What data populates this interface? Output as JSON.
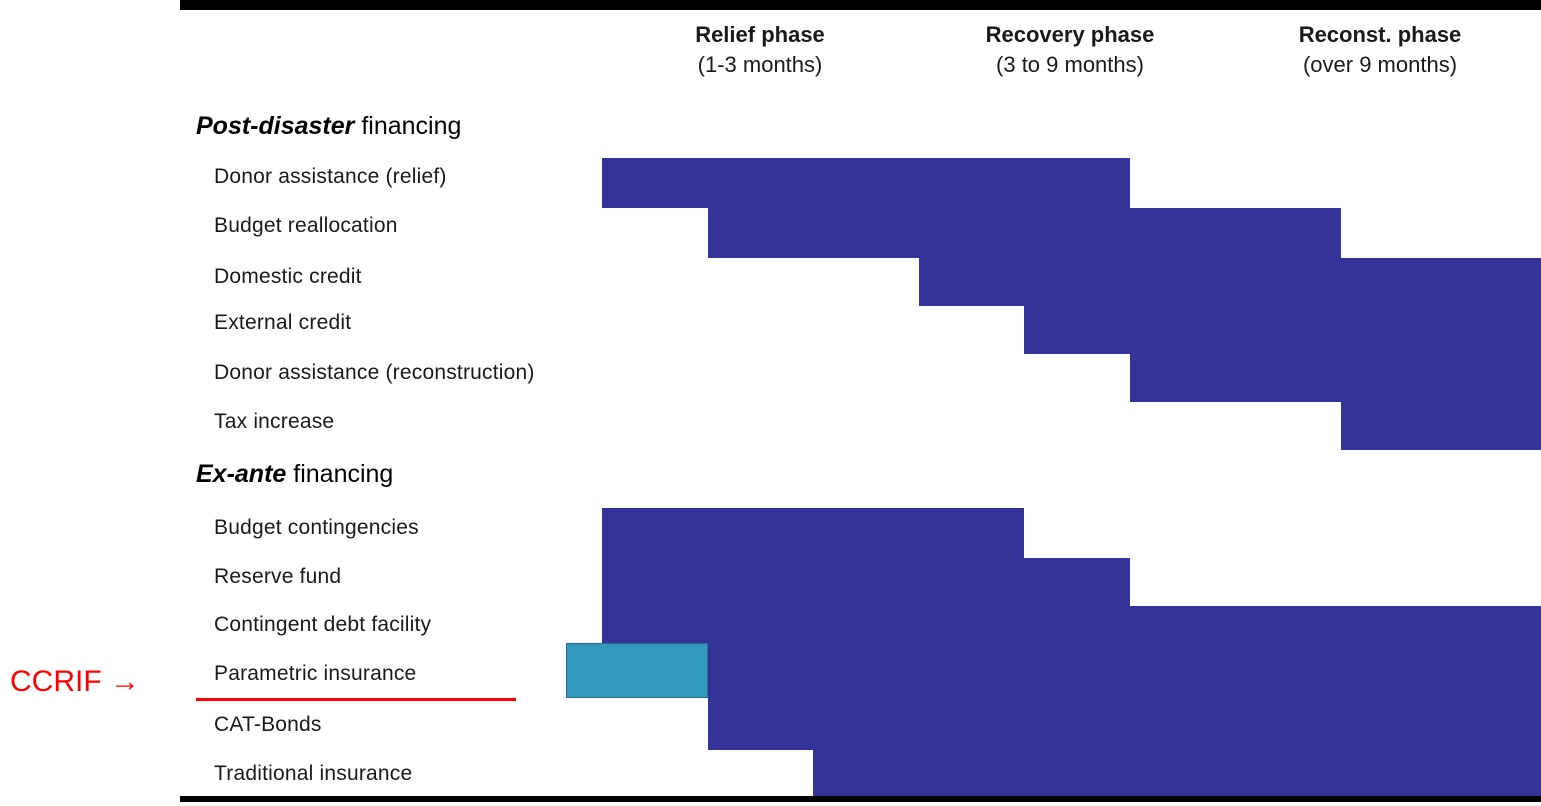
{
  "phases": [
    {
      "name": "Relief phase",
      "range": "(1-3 months)"
    },
    {
      "name": "Recovery phase",
      "range": "(3 to 9 months)"
    },
    {
      "name": "Reconst. phase",
      "range": "(over 9 months)"
    }
  ],
  "sections": {
    "post_disaster": {
      "italic": "Post-disaster",
      "rest": " financing"
    },
    "ex_ante": {
      "italic": "Ex-ante",
      "rest": " financing"
    }
  },
  "rows": [
    {
      "label": "Donor assistance (relief)",
      "start_month": 0,
      "end_month": 5
    },
    {
      "label": "Budget reallocation",
      "start_month": 1,
      "end_month": 7
    },
    {
      "label": "Domestic credit",
      "start_month": 3,
      "end_month": 9
    },
    {
      "label": "External credit",
      "start_month": 4,
      "end_month": 9
    },
    {
      "label": "Donor assistance (reconstruction)",
      "start_month": 5,
      "end_month": 9
    },
    {
      "label": "Tax increase",
      "start_month": 7,
      "end_month": 9
    },
    {
      "label": "Budget contingencies",
      "start_month": 0,
      "end_month": 4
    },
    {
      "label": "Reserve fund",
      "start_month": 0,
      "end_month": 5
    },
    {
      "label": "Contingent debt facility",
      "start_month": 0,
      "end_month": 9
    },
    {
      "label": "Parametric insurance",
      "start_month": 1,
      "end_month": 9,
      "accent_start_month": 0,
      "accent_end_month": 1
    },
    {
      "label": "CAT-Bonds",
      "start_month": 1,
      "end_month": 9
    },
    {
      "label": "Traditional insurance",
      "start_month": 2,
      "end_month": 9
    }
  ],
  "callout": {
    "text": "CCRIF →",
    "target_row": "Parametric insurance",
    "color": "#ff0000"
  },
  "colors": {
    "bar": "#333399",
    "accent": "#3399bb",
    "callout": "#ff0000"
  }
}
